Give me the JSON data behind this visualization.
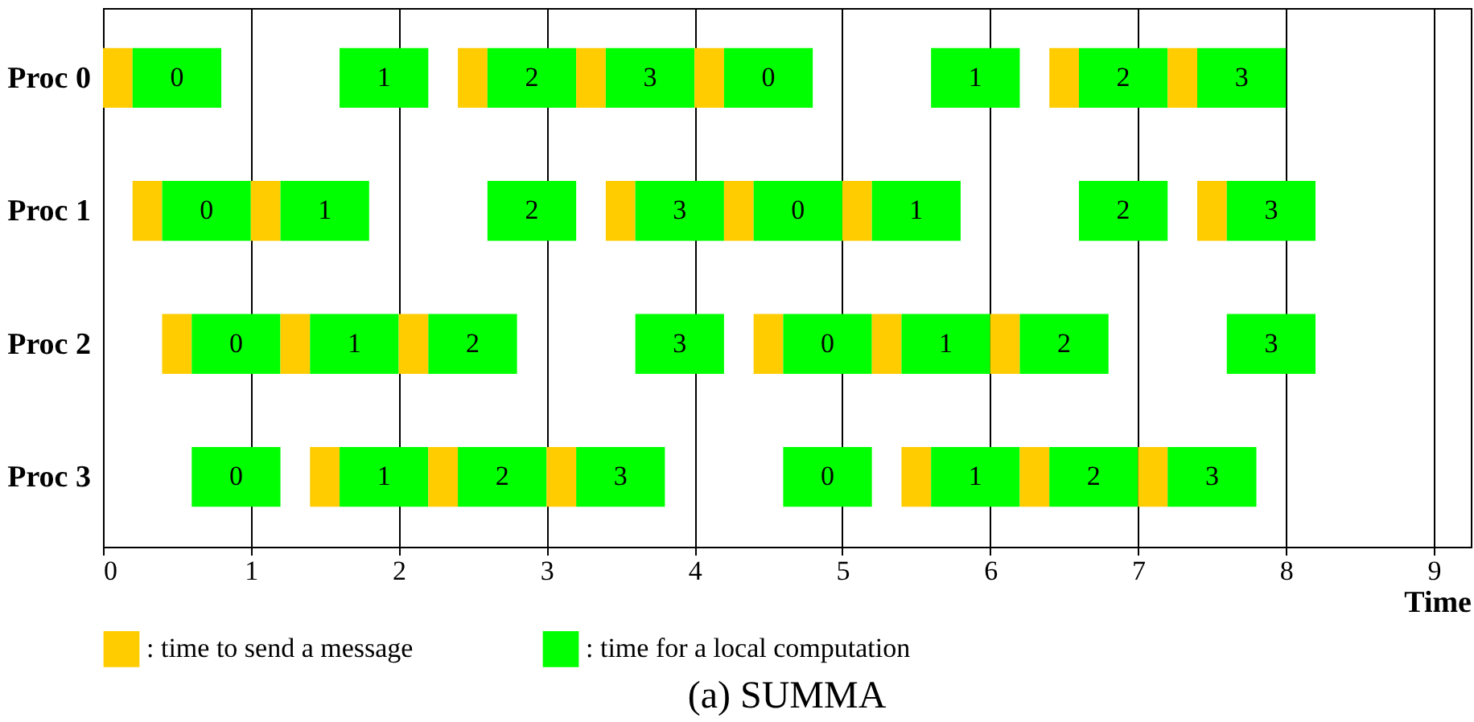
{
  "chart_data": {
    "type": "bar",
    "orientation": "horizontal",
    "title": "(a) SUMMA",
    "xlabel": "Time",
    "categories": [
      "Proc 0",
      "Proc 1",
      "Proc 2",
      "Proc 3"
    ],
    "xlim": [
      0,
      9.25
    ],
    "xticks": [
      0,
      1,
      2,
      3,
      4,
      5,
      6,
      7,
      8,
      9
    ],
    "grid": "x",
    "legend": "bottom",
    "series": [
      {
        "name": ": time to send a message",
        "color": "#ffcc00",
        "base": [
          0,
          0.2,
          0.4,
          null
        ],
        "values": [
          0.2,
          0.2,
          0.2,
          null
        ]
      },
      {
        "name": ": time for a local computation",
        "color": "#00ff00",
        "base": [
          0.2,
          0.4,
          0.6,
          0.6
        ],
        "values": [
          0.6,
          0.6,
          0.6,
          0.6
        ]
      },
      {
        "color": "#ffcc00",
        "base": [
          null,
          1.0,
          1.2,
          1.4
        ],
        "values": [
          null,
          0.2,
          0.2,
          0.2
        ]
      },
      {
        "color": "#00ff00",
        "base": [
          1.6,
          1.2,
          1.4,
          1.6
        ],
        "values": [
          0.6,
          0.6,
          0.6,
          0.6
        ]
      },
      {
        "color": "#ffcc00",
        "base": [
          2.4,
          null,
          2.0,
          2.2
        ],
        "values": [
          0.2,
          null,
          0.2,
          0.2
        ]
      },
      {
        "color": "#00ff00",
        "base": [
          2.6,
          2.6,
          2.2,
          2.4
        ],
        "values": [
          0.6,
          0.6,
          0.6,
          0.6
        ]
      },
      {
        "color": "#ffcc00",
        "base": [
          3.2,
          3.4,
          null,
          3.0
        ],
        "values": [
          0.2,
          0.2,
          null,
          0.2
        ]
      },
      {
        "color": "#00ff00",
        "base": [
          3.4,
          3.6,
          3.6,
          3.2
        ],
        "values": [
          0.6,
          0.6,
          0.6,
          0.6
        ]
      },
      {
        "color": "#ffcc00",
        "base": [
          4.0,
          4.2,
          4.4,
          null
        ],
        "values": [
          0.2,
          0.2,
          0.2,
          null
        ]
      },
      {
        "color": "#00ff00",
        "base": [
          4.2,
          4.4,
          4.6,
          4.6
        ],
        "values": [
          0.6,
          0.6,
          0.6,
          0.6
        ]
      },
      {
        "color": "#ffcc00",
        "base": [
          null,
          5.0,
          5.2,
          5.4
        ],
        "values": [
          null,
          0.2,
          0.2,
          0.2
        ]
      },
      {
        "color": "#00ff00",
        "base": [
          5.6,
          5.2,
          5.4,
          5.6
        ],
        "values": [
          0.6,
          0.6,
          0.6,
          0.6
        ]
      },
      {
        "color": "#ffcc00",
        "base": [
          6.4,
          null,
          6.0,
          6.2
        ],
        "values": [
          0.2,
          null,
          0.2,
          0.2
        ]
      },
      {
        "color": "#00ff00",
        "base": [
          6.6,
          6.6,
          6.2,
          6.4
        ],
        "values": [
          0.6,
          0.6,
          0.6,
          0.6
        ]
      },
      {
        "color": "#ffcc00",
        "base": [
          7.2,
          7.4,
          null,
          7.0
        ],
        "values": [
          0.2,
          0.2,
          null,
          0.2
        ]
      },
      {
        "color": "#00ff00",
        "base": [
          7.4,
          7.6,
          7.6,
          7.2
        ],
        "values": [
          0.6,
          0.6,
          0.6,
          0.6
        ]
      }
    ],
    "annotations": [
      {
        "text": "0",
        "x": 0.2,
        "y": "Proc 0"
      },
      {
        "text": "0",
        "x": 0.4,
        "y": "Proc 1"
      },
      {
        "text": "0",
        "x": 0.6,
        "y": "Proc 2"
      },
      {
        "text": "0",
        "x": 0.6,
        "y": "Proc 3"
      },
      {
        "text": "1",
        "x": 1.6,
        "y": "Proc 0"
      },
      {
        "text": "1",
        "x": 1.2,
        "y": "Proc 1"
      },
      {
        "text": "1",
        "x": 1.4,
        "y": "Proc 2"
      },
      {
        "text": "1",
        "x": 1.6,
        "y": "Proc 3"
      },
      {
        "text": "2",
        "x": 2.6,
        "y": "Proc 0"
      },
      {
        "text": "2",
        "x": 2.6,
        "y": "Proc 1"
      },
      {
        "text": "2",
        "x": 2.2,
        "y": "Proc 2"
      },
      {
        "text": "2",
        "x": 2.4,
        "y": "Proc 3"
      },
      {
        "text": "3",
        "x": 3.4,
        "y": "Proc 0"
      },
      {
        "text": "3",
        "x": 3.6,
        "y": "Proc 1"
      },
      {
        "text": "3",
        "x": 3.6,
        "y": "Proc 2"
      },
      {
        "text": "3",
        "x": 3.2,
        "y": "Proc 3"
      },
      {
        "text": "0",
        "x": 4.2,
        "y": "Proc 0"
      },
      {
        "text": "0",
        "x": 4.4,
        "y": "Proc 1"
      },
      {
        "text": "0",
        "x": 4.6,
        "y": "Proc 2"
      },
      {
        "text": "0",
        "x": 4.6,
        "y": "Proc 3"
      },
      {
        "text": "1",
        "x": 5.6,
        "y": "Proc 0"
      },
      {
        "text": "1",
        "x": 5.2,
        "y": "Proc 1"
      },
      {
        "text": "1",
        "x": 5.4,
        "y": "Proc 2"
      },
      {
        "text": "1",
        "x": 5.6,
        "y": "Proc 3"
      },
      {
        "text": "2",
        "x": 6.6,
        "y": "Proc 0"
      },
      {
        "text": "2",
        "x": 6.6,
        "y": "Proc 1"
      },
      {
        "text": "2",
        "x": 6.2,
        "y": "Proc 2"
      },
      {
        "text": "2",
        "x": 6.4,
        "y": "Proc 3"
      },
      {
        "text": "3",
        "x": 7.4,
        "y": "Proc 0"
      },
      {
        "text": "3",
        "x": 7.6,
        "y": "Proc 1"
      },
      {
        "text": "3",
        "x": 7.6,
        "y": "Proc 2"
      },
      {
        "text": "3",
        "x": 7.2,
        "y": "Proc 3"
      }
    ]
  }
}
